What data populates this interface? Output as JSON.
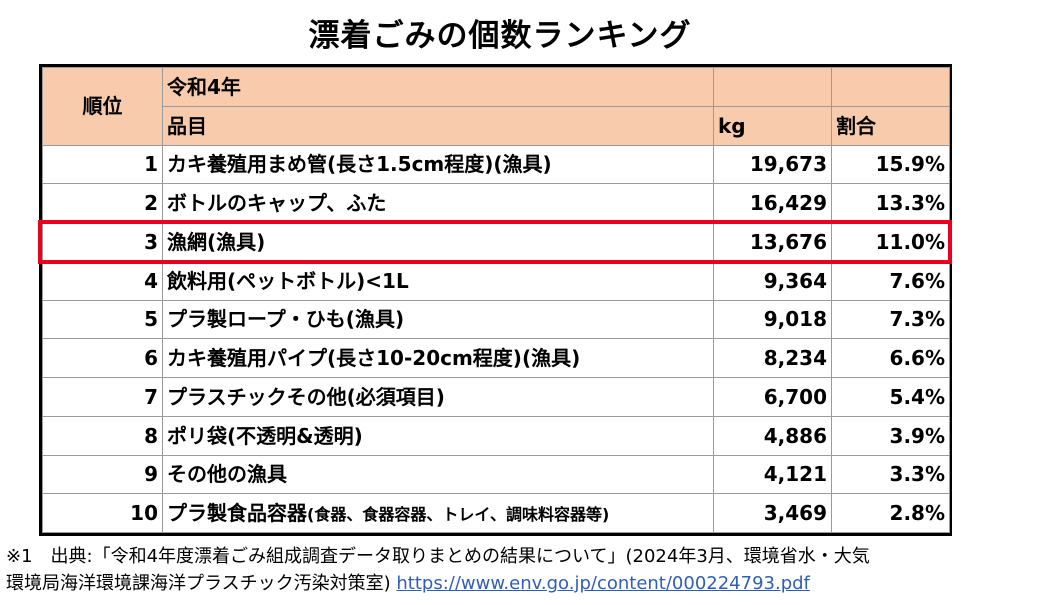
{
  "title": "漂着ごみの個数ランキング",
  "table": {
    "header_rank": "順位",
    "header_year": "令和4年",
    "header_item": "品目",
    "header_kg": "kg",
    "header_ratio": "割合",
    "rows": [
      {
        "rank": "1",
        "item": "カキ養殖用まめ管(長さ1.5cm程度)(漁具)",
        "note": "",
        "kg": "19,673",
        "ratio": "15.9%"
      },
      {
        "rank": "2",
        "item": "ボトルのキャップ、ふた",
        "note": "",
        "kg": "16,429",
        "ratio": "13.3%"
      },
      {
        "rank": "3",
        "item": "漁網(漁具)",
        "note": "",
        "kg": "13,676",
        "ratio": "11.0%"
      },
      {
        "rank": "4",
        "item": "飲料用(ペットボトル)<1L",
        "note": "",
        "kg": "9,364",
        "ratio": "7.6%"
      },
      {
        "rank": "5",
        "item": "プラ製ロープ・ひも(漁具)",
        "note": "",
        "kg": "9,018",
        "ratio": "7.3%"
      },
      {
        "rank": "6",
        "item": "カキ養殖用パイプ(長さ10-20cm程度)(漁具)",
        "note": "",
        "kg": "8,234",
        "ratio": "6.6%"
      },
      {
        "rank": "7",
        "item": "プラスチックその他(必須項目)",
        "note": "",
        "kg": "6,700",
        "ratio": "5.4%"
      },
      {
        "rank": "8",
        "item": "ポリ袋(不透明&透明)",
        "note": "",
        "kg": "4,886",
        "ratio": "3.9%"
      },
      {
        "rank": "9",
        "item": "その他の漁具",
        "note": "",
        "kg": "4,121",
        "ratio": "3.3%"
      },
      {
        "rank": "10",
        "item": "プラ製食品容器",
        "note": "(食器、食器容器、トレイ、調味料容器等)",
        "kg": "3,469",
        "ratio": "2.8%"
      }
    ]
  },
  "highlight_color": "#e8001c",
  "header_color": "#f8cbad",
  "footnote": {
    "line1": "※1　出典:「令和4年度漂着ごみ組成調査データ取りまとめの結果について」(2024年3月、環境省水・大気",
    "line2_prefix": "環境局海洋環境課海洋プラスチック汚染対策室) ",
    "link_text": "https://www.env.go.jp/content/000224793.pdf"
  }
}
